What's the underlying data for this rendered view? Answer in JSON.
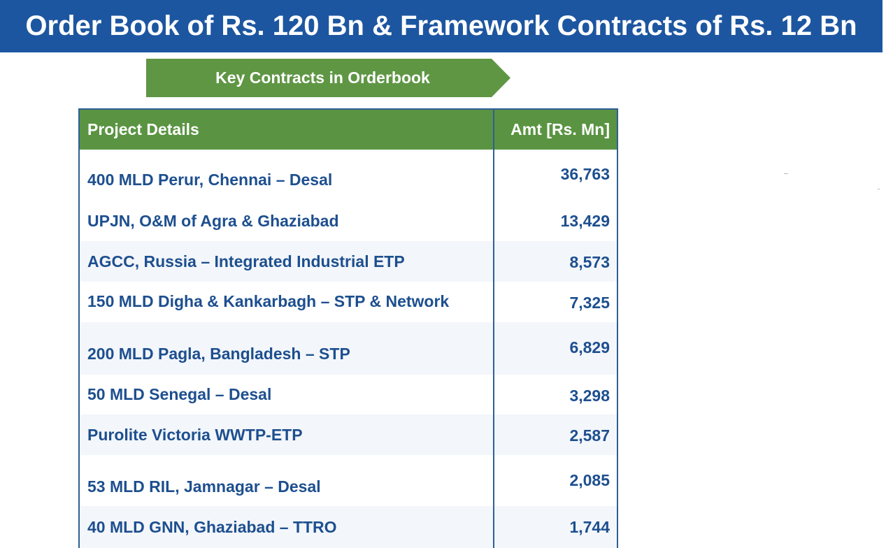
{
  "header": {
    "title": "Order Book of Rs. 120 Bn & Framework Contracts of Rs. 12 Bn"
  },
  "banner": {
    "label": "Key Contracts in Orderbook"
  },
  "table": {
    "columns": [
      "Project Details",
      "Amt [Rs. Mn]"
    ],
    "rows": [
      {
        "project": "400 MLD Perur, Chennai – Desal",
        "amount": "36,763"
      },
      {
        "project": "UPJN, O&M of Agra & Ghaziabad",
        "amount": "13,429"
      },
      {
        "project": "AGCC, Russia – Integrated Industrial ETP",
        "amount": "8,573"
      },
      {
        "project": "150 MLD Digha & Kankarbagh – STP & Network",
        "amount": "7,325"
      },
      {
        "project": "200 MLD Pagla, Bangladesh – STP",
        "amount": "6,829"
      },
      {
        "project": "50 MLD Senegal – Desal",
        "amount": "3,298"
      },
      {
        "project": "Purolite Victoria WWTP-ETP",
        "amount": "2,587"
      },
      {
        "project": "53 MLD RIL, Jamnagar – Desal",
        "amount": "2,085"
      },
      {
        "project": "40 MLD GNN, Ghaziabad – TTRO",
        "amount": "1,744"
      }
    ]
  },
  "colors": {
    "title_bg": "#1d56a0",
    "banner_green": "#5a9442",
    "table_border": "#2f5f95",
    "text_blue": "#1d4f8f",
    "row_shade": "#f3f6fa"
  }
}
